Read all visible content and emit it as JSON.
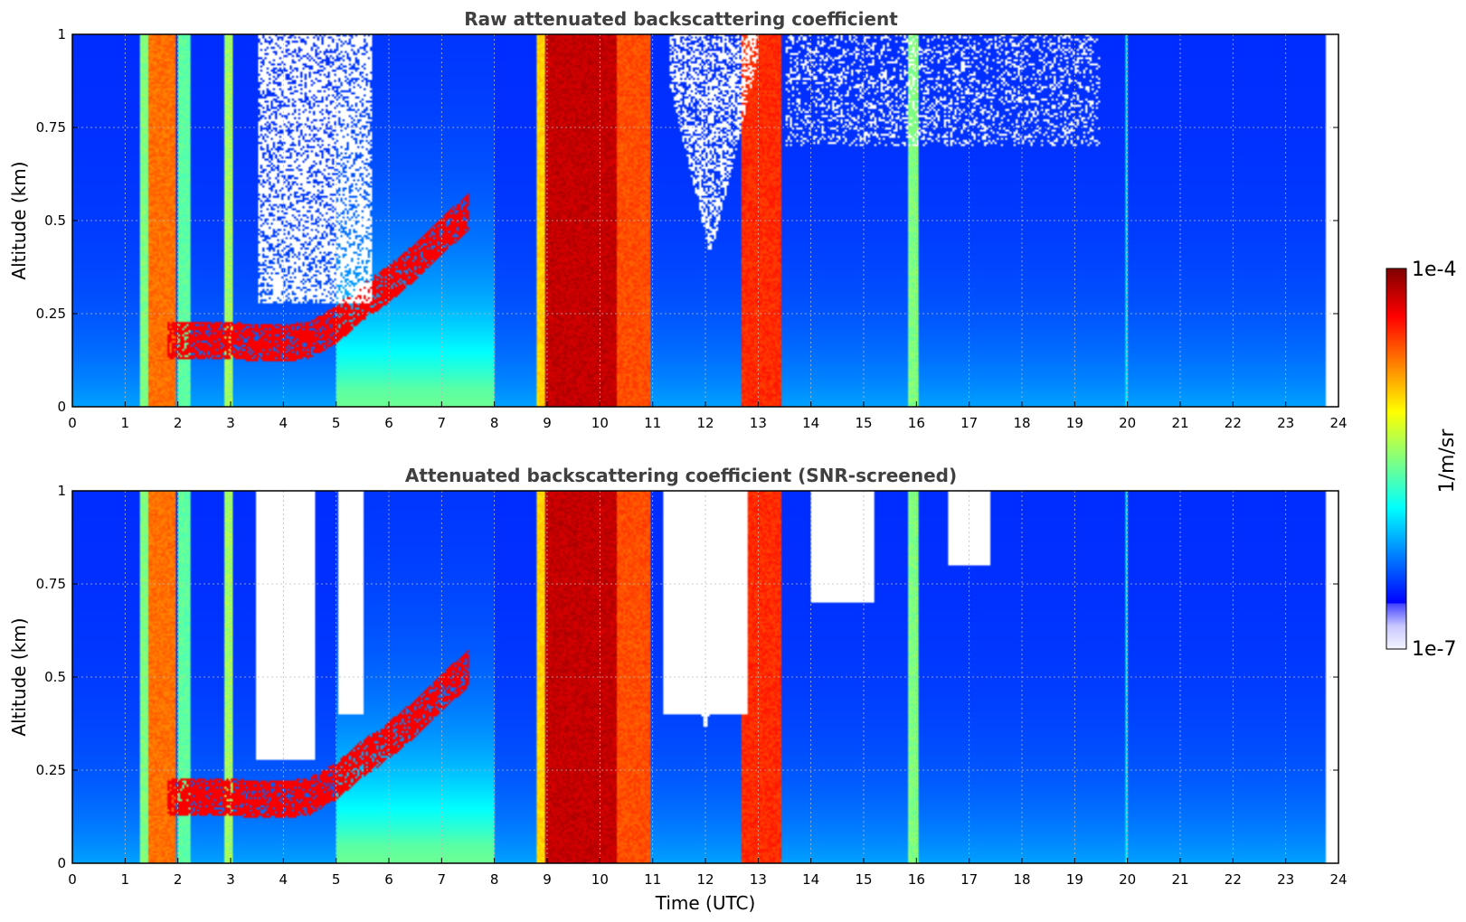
{
  "colors": {
    "jet": [
      "#00008f",
      "#0000ff",
      "#0080ff",
      "#00ffff",
      "#80ff80",
      "#ffff00",
      "#ff8000",
      "#ff0000",
      "#800000"
    ],
    "screened_low": "#f4f4ff"
  },
  "colorbar": {
    "label": "1/m/sr",
    "max_label": "1e-4",
    "min_label": "1e-7",
    "log_min": -7,
    "log_max": -4
  },
  "xaxis": {
    "label": "Time (UTC)",
    "ticks": [
      0,
      1,
      2,
      3,
      4,
      5,
      6,
      7,
      8,
      9,
      10,
      11,
      12,
      13,
      14,
      15,
      16,
      17,
      18,
      19,
      20,
      21,
      22,
      23,
      24
    ]
  },
  "chart_data": [
    {
      "type": "heatmap",
      "title": "Raw attenuated backscattering coefficient",
      "xlabel": "",
      "ylabel": "Altitude (km)",
      "xlim": [
        0,
        24
      ],
      "ylim": [
        0,
        1
      ],
      "xticks": [
        "0",
        "1",
        "2",
        "3",
        "4",
        "5",
        "6",
        "7",
        "8",
        "9",
        "10",
        "11",
        "12",
        "13",
        "14",
        "15",
        "16",
        "17",
        "18",
        "19",
        "20",
        "21",
        "22",
        "23",
        "24"
      ],
      "yticks": [
        "0",
        "0.25",
        "0.5",
        "0.75",
        "1"
      ],
      "ytick_values": [
        0,
        0.25,
        0.5,
        0.75,
        1
      ],
      "grid": true,
      "data_end_hour": 23.75,
      "units": "1/m/sr",
      "features": {
        "background_log_beta": -6.5,
        "cloud_columns": [
          {
            "start": 1.3,
            "end": 1.45,
            "log_beta": -5.5
          },
          {
            "start": 1.45,
            "end": 1.95,
            "log_beta": -4.7
          },
          {
            "start": 2.0,
            "end": 2.25,
            "log_beta": -5.6
          },
          {
            "start": 2.9,
            "end": 3.05,
            "log_beta": -5.4
          },
          {
            "start": 8.8,
            "end": 8.95,
            "log_beta": -5.0
          },
          {
            "start": 8.95,
            "end": 10.3,
            "log_beta": -4.2
          },
          {
            "start": 10.3,
            "end": 10.95,
            "log_beta": -4.6
          },
          {
            "start": 12.7,
            "end": 13.45,
            "log_beta": -4.5
          },
          {
            "start": 15.85,
            "end": 16.05,
            "log_beta": -5.5
          },
          {
            "start": 19.95,
            "end": 20.0,
            "log_beta": -5.9
          }
        ],
        "boundary_layer": [
          {
            "t": 1.8,
            "alt": 0.18
          },
          {
            "t": 3.0,
            "alt": 0.18
          },
          {
            "t": 3.5,
            "alt": 0.17
          },
          {
            "t": 4.0,
            "alt": 0.17
          },
          {
            "t": 4.5,
            "alt": 0.18
          },
          {
            "t": 5.0,
            "alt": 0.22
          },
          {
            "t": 5.5,
            "alt": 0.28
          },
          {
            "t": 6.0,
            "alt": 0.33
          },
          {
            "t": 6.5,
            "alt": 0.39
          },
          {
            "t": 7.0,
            "alt": 0.46
          },
          {
            "t": 7.5,
            "alt": 0.52
          }
        ]
      }
    },
    {
      "type": "heatmap",
      "title": "Attenuated backscattering coefficient (SNR-screened)",
      "xlabel": "Time (UTC)",
      "ylabel": "Altitude (km)",
      "xlim": [
        0,
        24
      ],
      "ylim": [
        0,
        1
      ],
      "xticks": [
        "0",
        "1",
        "2",
        "3",
        "4",
        "5",
        "6",
        "7",
        "8",
        "9",
        "10",
        "11",
        "12",
        "13",
        "14",
        "15",
        "16",
        "17",
        "18",
        "19",
        "20",
        "21",
        "22",
        "23",
        "24"
      ],
      "yticks": [
        "0",
        "0.25",
        "0.5",
        "0.75",
        "1"
      ],
      "ytick_values": [
        0,
        0.25,
        0.5,
        0.75,
        1
      ],
      "grid": true,
      "data_end_hour": 23.75,
      "units": "1/m/sr",
      "features": {
        "screened_regions": [
          {
            "start": 3.5,
            "end": 4.6,
            "from_alt": 0.28
          },
          {
            "start": 5.05,
            "end": 5.5,
            "from_alt": 0.4
          },
          {
            "start": 11.2,
            "end": 12.8,
            "from_alt": 0.4
          },
          {
            "start": 14.0,
            "end": 15.2,
            "from_alt": 0.7
          },
          {
            "start": 16.6,
            "end": 17.4,
            "from_alt": 0.8
          }
        ]
      }
    }
  ]
}
